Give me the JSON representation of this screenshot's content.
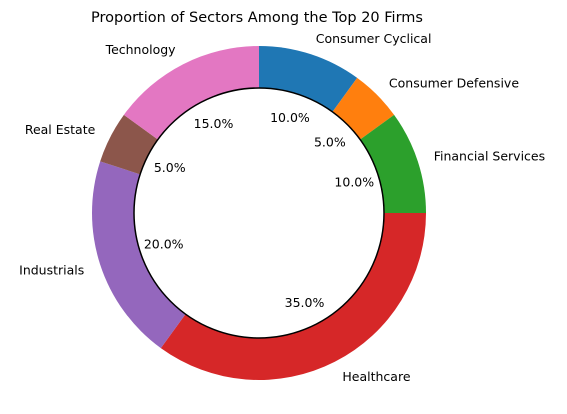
{
  "chart_data": {
    "type": "pie",
    "style": "donut",
    "title": "Proportion of Sectors Among the Top 20 Firms",
    "start_angle_deg": 90,
    "direction": "clockwise",
    "slices": [
      {
        "label": "Consumer Cyclical",
        "value": 10.0,
        "pct_label": "10.0%",
        "color": "#1f77b4"
      },
      {
        "label": "Consumer Defensive",
        "value": 5.0,
        "pct_label": "5.0%",
        "color": "#ff7f0e"
      },
      {
        "label": "Financial Services",
        "value": 10.0,
        "pct_label": "10.0%",
        "color": "#2ca02c"
      },
      {
        "label": "Healthcare",
        "value": 35.0,
        "pct_label": "35.0%",
        "color": "#d62728"
      },
      {
        "label": "Industrials",
        "value": 20.0,
        "pct_label": "20.0%",
        "color": "#9467bd"
      },
      {
        "label": "Real Estate",
        "value": 5.0,
        "pct_label": "5.0%",
        "color": "#8c564b"
      },
      {
        "label": "Technology",
        "value": 15.0,
        "pct_label": "15.0%",
        "color": "#e377c2"
      }
    ],
    "center_circle": {
      "fill": "#ffffff",
      "stroke": "#000000"
    }
  }
}
